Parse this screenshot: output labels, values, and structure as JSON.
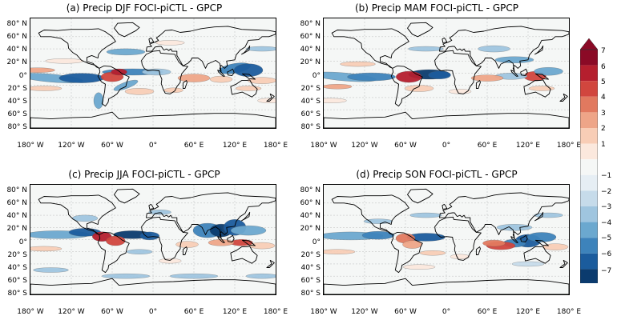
{
  "panels": [
    {
      "title": "(a) Precip DJF FOCI-piCTL - GPCP"
    },
    {
      "title": "(b) Precip MAM FOCI-piCTL - GPCP"
    },
    {
      "title": "(c) Precip JJA FOCI-piCTL - GPCP"
    },
    {
      "title": "(d) Precip SON FOCI-piCTL - GPCP"
    }
  ],
  "lat_ticks": [
    "80° N",
    "60° N",
    "40° N",
    "20° N",
    "0°",
    "20° S",
    "40° S",
    "60° S",
    "80° S"
  ],
  "lon_ticks": [
    "180° W",
    "120° W",
    "60° W",
    "0°",
    "60° E",
    "120° E",
    "180° E"
  ],
  "colorbar": {
    "ticks": [
      "7",
      "6",
      "5",
      "4",
      "3",
      "2",
      "1",
      "−1",
      "−2",
      "−3",
      "−4",
      "−5",
      "−6",
      "−7"
    ],
    "colors_positive": [
      "#8b0a26",
      "#b51f2e",
      "#d1463e",
      "#e1795f",
      "#eea588",
      "#f8cdb6",
      "#fbe8dd"
    ],
    "colors_negative": [
      "#e6eef4",
      "#c6dbea",
      "#9fc5df",
      "#6ba8cf",
      "#3d83bb",
      "#1b5c9d",
      "#0b3b6e"
    ],
    "neutral": "#f5f7f6"
  }
}
